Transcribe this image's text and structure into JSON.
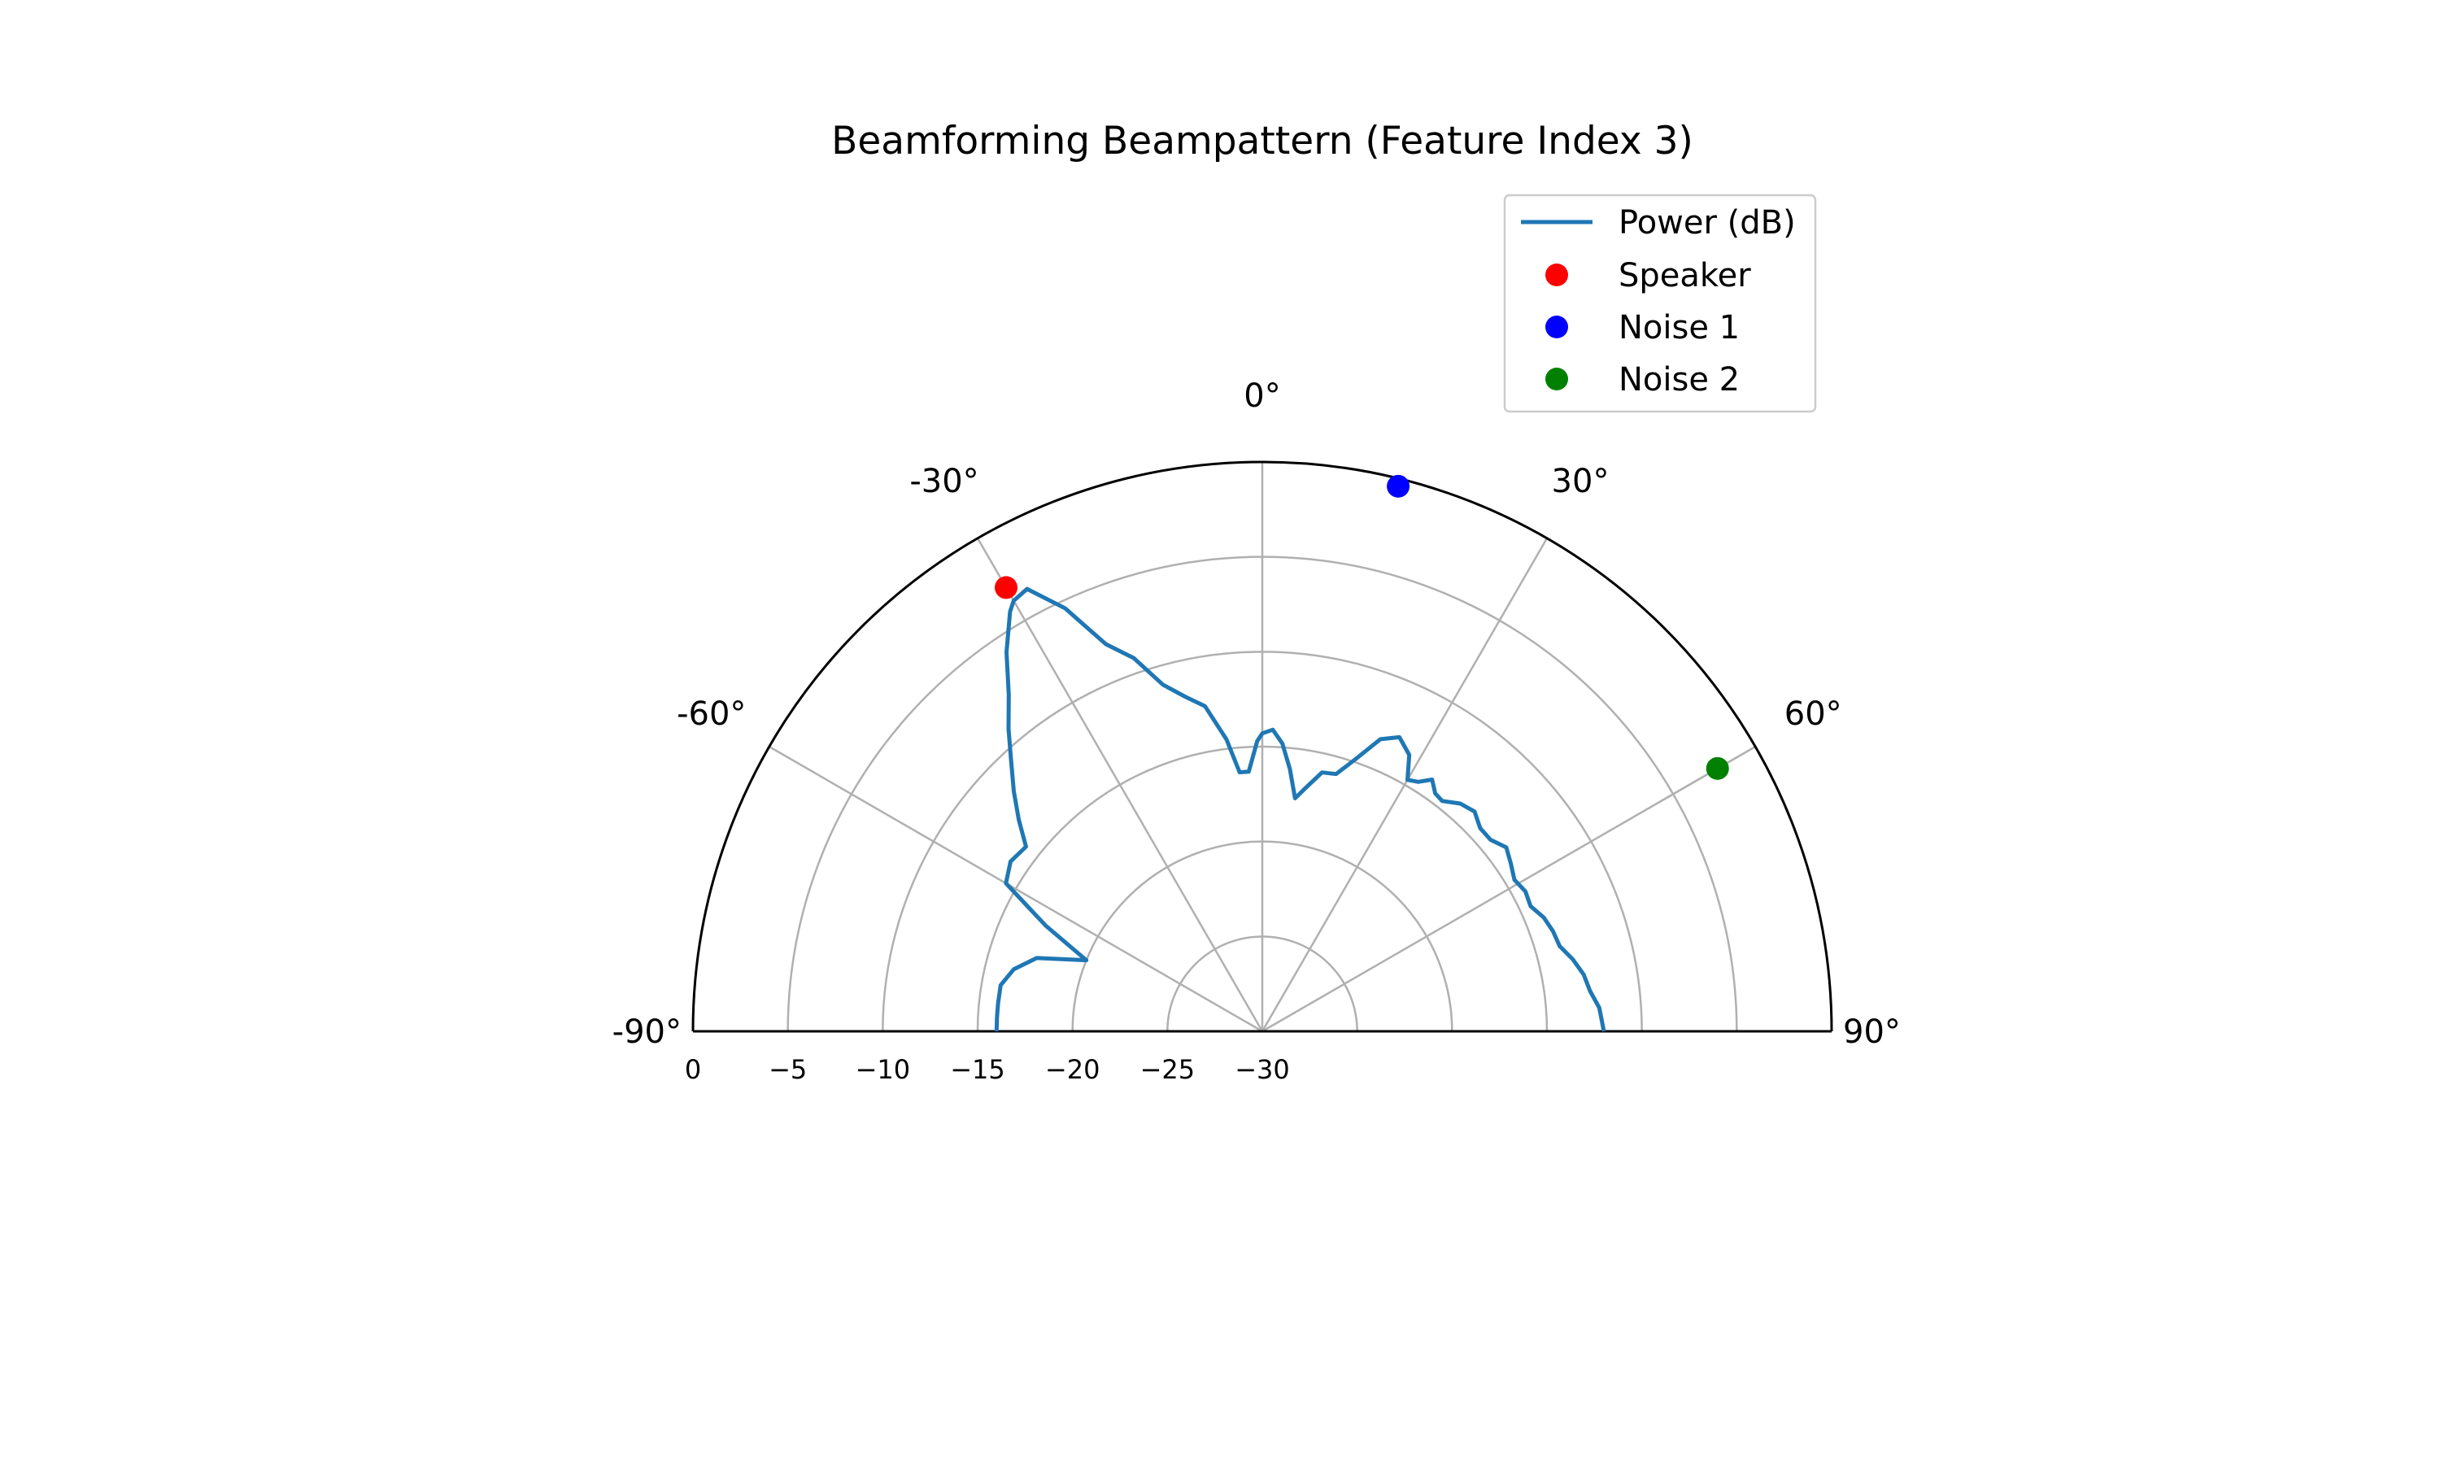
{
  "chart_data": {
    "type": "polar-line",
    "title": "Beamforming Beampattern (Feature Index 3)",
    "theta_range_deg": [
      -90,
      90
    ],
    "theta_zero_location": "top",
    "theta_direction": "clockwise",
    "theta_ticks": [
      -90,
      -60,
      -30,
      0,
      30,
      60,
      90
    ],
    "theta_tick_labels": [
      "-90°",
      "-60°",
      "-30°",
      "0°",
      "30°",
      "60°",
      "90°"
    ],
    "r_range": [
      0,
      -30
    ],
    "r_direction": "decreasing outward",
    "r_ticks": [
      0,
      -5,
      -10,
      -15,
      -20,
      -25,
      -30
    ],
    "r_tick_labels": [
      "0",
      "−5",
      "−10",
      "−15",
      "−20",
      "−25",
      "−30"
    ],
    "grid": true,
    "legend_position": "upper-right",
    "series": [
      {
        "name": "Power (dB)",
        "kind": "line",
        "color": "#1f77b4",
        "theta": [
          -90,
          -87,
          -84,
          -80,
          -76,
          -72,
          -68,
          -64,
          -60,
          -56,
          -52,
          -49,
          -46,
          -43,
          -40,
          -37,
          -34,
          -31,
          -30,
          -28,
          -25,
          -22,
          -19,
          -16,
          -13,
          -10,
          -7,
          -5,
          -3,
          -1,
          0,
          2,
          4,
          6,
          8,
          10,
          13,
          16,
          19,
          22,
          25,
          28,
          30,
          32,
          34,
          36,
          38,
          41,
          44,
          47,
          50,
          53,
          56,
          59,
          62,
          65,
          68,
          71,
          74,
          77,
          80,
          83,
          86,
          90
        ],
        "r": [
          -16.0,
          -16.0,
          -16.0,
          -16.0,
          -16.5,
          -17.5,
          -20.0,
          -17.3,
          -14.4,
          -14.0,
          -14.2,
          -13.0,
          -11.8,
          -10.6,
          -9.2,
          -7.8,
          -5.9,
          -4.2,
          -3.8,
          -3.6,
          -5.4,
          -8.0,
          -9.2,
          -11.0,
          -11.9,
          -12.6,
          -14.5,
          -16.3,
          -16.3,
          -14.7,
          -14.3,
          -14.1,
          -14.8,
          -16.1,
          -17.6,
          -17.0,
          -16.0,
          -15.9,
          -14.8,
          -13.4,
          -12.9,
          -13.5,
          -14.7,
          -14.5,
          -14.0,
          -14.5,
          -14.6,
          -14.1,
          -13.9,
          -14.3,
          -14.3,
          -13.9,
          -14.2,
          -14.5,
          -14.3,
          -14.4,
          -14.0,
          -13.8,
          -13.7,
          -13.2,
          -12.8,
          -12.6,
          -12.2,
          -12.0
        ]
      },
      {
        "name": "Speaker",
        "kind": "marker",
        "color": "#ff0000",
        "points": [
          {
            "theta": -30,
            "r": -3.0
          }
        ]
      },
      {
        "name": "Noise 1",
        "kind": "marker",
        "color": "#0000ff",
        "points": [
          {
            "theta": 14,
            "r": -0.4
          }
        ]
      },
      {
        "name": "Noise 2",
        "kind": "marker",
        "color": "#008000",
        "points": [
          {
            "theta": 60,
            "r": -2.3
          }
        ]
      }
    ]
  }
}
